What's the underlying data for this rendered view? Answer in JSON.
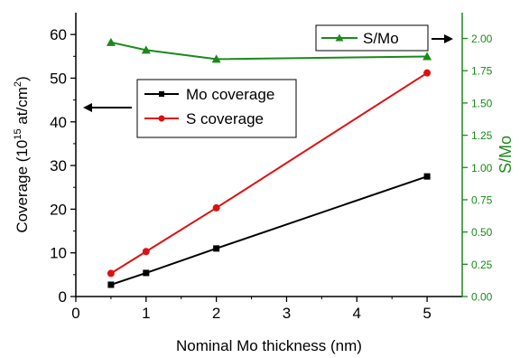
{
  "chart_data": {
    "type": "line",
    "xlabel": "Nominal Mo thickness (nm)",
    "ylabel_left": "Coverage (10",
    "ylabel_left_sup": "15",
    "ylabel_left_mid": " at/cm",
    "ylabel_left_sup2": "2",
    "ylabel_left_end": ")",
    "ylabel_right": "S/Mo",
    "xlim": [
      0,
      5.5
    ],
    "ylim_left": [
      0,
      65
    ],
    "ylim_right": [
      0,
      2.2
    ],
    "x_ticks": [
      "0",
      "1",
      "2",
      "3",
      "4",
      "5"
    ],
    "y_ticks_left": [
      "0",
      "10",
      "20",
      "30",
      "40",
      "50",
      "60"
    ],
    "y_ticks_right": [
      "0.00",
      "0.25",
      "0.50",
      "0.75",
      "1.00",
      "1.25",
      "1.50",
      "1.75",
      "2.00"
    ],
    "series": [
      {
        "name": "Mo coverage",
        "axis": "left",
        "color": "#000000",
        "marker": "square",
        "x": [
          0.5,
          1,
          2,
          5
        ],
        "values": [
          2.7,
          5.4,
          11.0,
          27.5
        ]
      },
      {
        "name": "S coverage",
        "axis": "left",
        "color": "#dd1111",
        "marker": "circle",
        "x": [
          0.5,
          1,
          2,
          5
        ],
        "values": [
          5.3,
          10.3,
          20.3,
          51.2
        ]
      },
      {
        "name": "S/Mo",
        "axis": "right",
        "color": "#1a8a1a",
        "marker": "triangle",
        "x": [
          0.5,
          1,
          2,
          5
        ],
        "values": [
          1.97,
          1.91,
          1.84,
          1.86
        ]
      }
    ],
    "legend": {
      "left": {
        "placement": "center",
        "entries": [
          "Mo coverage",
          "S coverage"
        ]
      },
      "right": {
        "placement": "top-right",
        "entries": [
          "S/Mo"
        ]
      }
    },
    "annotations": [
      {
        "type": "arrow",
        "direction": "left",
        "meaning": "points to left axis"
      },
      {
        "type": "arrow",
        "direction": "right",
        "meaning": "points to right axis"
      }
    ],
    "grid": false
  }
}
